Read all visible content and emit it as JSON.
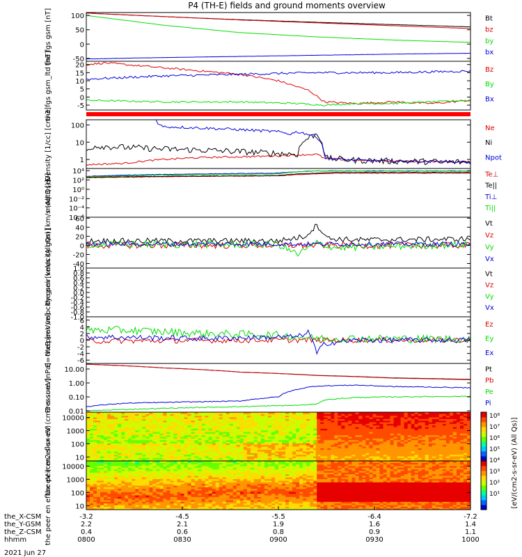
{
  "title": "P4 (TH-E) fields and ground moments overview",
  "date": "2021 Jun 27",
  "colors": {
    "black": "#000000",
    "red": "#dd0000",
    "green": "#00dd00",
    "blue": "#0000dd"
  },
  "chart_data": [
    {
      "type": "line",
      "ylabel": "the fgs gsm [nT]",
      "ylim": [
        -60,
        110
      ],
      "log": false,
      "yticks": [
        {
          "v": 100,
          "t": "100"
        },
        {
          "v": 50,
          "t": "50"
        },
        {
          "v": 0,
          "t": "0"
        },
        {
          "v": -50,
          "t": "-50"
        }
      ],
      "series": [
        {
          "name": "Bt",
          "color": "#000000",
          "x": [
            0,
            0.2,
            0.4,
            0.6,
            0.8,
            1
          ],
          "y": [
            108,
            96,
            85,
            76,
            68,
            60
          ],
          "noise": 0.3
        },
        {
          "name": "bz",
          "color": "#dd0000",
          "x": [
            0,
            0.2,
            0.4,
            0.6,
            0.8,
            1
          ],
          "y": [
            108,
            96,
            84,
            74,
            64,
            54
          ],
          "noise": 0.3
        },
        {
          "name": "by",
          "color": "#00dd00",
          "x": [
            0,
            0.2,
            0.4,
            0.6,
            0.8,
            1
          ],
          "y": [
            100,
            66,
            40,
            25,
            14,
            6
          ],
          "noise": 0.3
        },
        {
          "name": "bx",
          "color": "#0000dd",
          "x": [
            0,
            0.2,
            0.4,
            0.6,
            0.8,
            1
          ],
          "y": [
            -52,
            -47,
            -43,
            -39,
            -35,
            -32
          ],
          "noise": 0.3
        }
      ]
    },
    {
      "type": "line",
      "ylabel": "the fgs gsm_ltd [nT]",
      "ylim": [
        -8,
        22
      ],
      "log": false,
      "yticks": [
        {
          "v": 20,
          "t": "20"
        },
        {
          "v": 15,
          "t": "15"
        },
        {
          "v": 10,
          "t": "10"
        },
        {
          "v": 5,
          "t": "5"
        },
        {
          "v": 0,
          "t": "0"
        },
        {
          "v": -5,
          "t": "-5"
        }
      ],
      "series": [
        {
          "name": "Bz",
          "color": "#dd0000",
          "x": [
            0,
            0.05,
            0.2,
            0.4,
            0.5,
            0.58,
            0.62,
            0.7,
            0.8,
            0.9,
            1
          ],
          "y": [
            20,
            21,
            18,
            14,
            10,
            4,
            -3,
            -4,
            -3,
            -4,
            -2
          ],
          "noise": 0.6
        },
        {
          "name": "By",
          "color": "#00dd00",
          "x": [
            0,
            0.2,
            0.4,
            0.55,
            0.62,
            0.7,
            0.8,
            0.9,
            1
          ],
          "y": [
            -2,
            -3,
            -3,
            -4,
            -5,
            -4,
            -4,
            -3,
            -2
          ],
          "noise": 0.5
        },
        {
          "name": "Bx",
          "color": "#0000dd",
          "x": [
            0,
            0.2,
            0.4,
            0.6,
            0.8,
            1
          ],
          "y": [
            11,
            13,
            14,
            15,
            15,
            16
          ],
          "noise": 0.7
        }
      ]
    },
    {
      "type": "line",
      "ylabel": "Density [1/cc] [cm-3]",
      "ylim": [
        0.3,
        200
      ],
      "log": true,
      "yticks": [
        {
          "v": 100,
          "t": "100"
        },
        {
          "v": 10,
          "t": "10"
        },
        {
          "v": 1,
          "t": "1"
        }
      ],
      "series": [
        {
          "name": "Ne",
          "color": "#dd0000",
          "x": [
            0,
            0.1,
            0.2,
            0.3,
            0.45,
            0.55,
            0.6,
            0.62,
            0.7,
            0.8,
            1
          ],
          "y": [
            0.5,
            0.6,
            1.0,
            1.3,
            1.5,
            1.8,
            2.0,
            1.1,
            0.9,
            0.8,
            0.7
          ],
          "noise": 0.05
        },
        {
          "name": "Ni",
          "color": "#000000",
          "x": [
            0,
            0.02,
            0.1,
            0.2,
            0.3,
            0.45,
            0.55,
            0.6,
            0.62,
            0.7,
            0.8,
            1
          ],
          "y": [
            3,
            6,
            5,
            4,
            3.5,
            2.5,
            2,
            30,
            1.2,
            0.9,
            0.8,
            0.7
          ],
          "noise": 0.18
        },
        {
          "name": "Npot",
          "color": "#0000dd",
          "x": [
            0.18,
            0.19,
            0.2,
            0.5,
            0.53,
            0.55,
            0.6,
            0.62,
            0.7,
            0.8,
            1
          ],
          "y": [
            200,
            100,
            80,
            40,
            30,
            40,
            20,
            1.2,
            0.9,
            0.8,
            0.7
          ],
          "noise": 0.08
        }
      ]
    },
    {
      "type": "line",
      "ylabel": "moqt3 [eV]",
      "ylim": [
        1e-06,
        30000
      ],
      "log": true,
      "yticks": [
        {
          "v": 10000,
          "t": "10⁴"
        },
        {
          "v": 100,
          "t": "10²"
        },
        {
          "v": 1,
          "t": "10⁰"
        },
        {
          "v": 0.01,
          "t": "10⁻²"
        },
        {
          "v": 0.0001,
          "t": "10⁻⁴"
        },
        {
          "v": 1e-06,
          "t": "10⁻⁶"
        }
      ],
      "series": [
        {
          "name": "Te⊥",
          "color": "#dd0000",
          "x": [
            0,
            0.5,
            0.6,
            0.65,
            1
          ],
          "y": [
            300,
            800,
            2000,
            3000,
            3000
          ],
          "noise": 0.05
        },
        {
          "name": "Te||",
          "color": "#000000",
          "x": [
            0,
            0.5,
            0.6,
            0.65,
            1
          ],
          "y": [
            400,
            900,
            3000,
            4000,
            4000
          ],
          "noise": 0.05
        },
        {
          "name": "Ti⊥",
          "color": "#0000dd",
          "x": [
            0,
            0.5,
            0.6,
            0.65,
            1
          ],
          "y": [
            600,
            3000,
            9000,
            9000,
            9000
          ],
          "noise": 0.05
        },
        {
          "name": "Ti||",
          "color": "#00dd00",
          "x": [
            0,
            0.5,
            0.6,
            0.65,
            1
          ],
          "y": [
            500,
            2000,
            9000,
            8000,
            8000
          ],
          "noise": 0.05
        }
      ]
    },
    {
      "type": "line",
      "ylabel": "the peir velocity gsm [km/s (All Qs)]",
      "ylim": [
        -50,
        62
      ],
      "log": false,
      "yticks": [
        {
          "v": 60,
          "t": "60"
        },
        {
          "v": 40,
          "t": "40"
        },
        {
          "v": 20,
          "t": "20"
        },
        {
          "v": 0,
          "t": "0"
        },
        {
          "v": -20,
          "t": "-20"
        },
        {
          "v": -40,
          "t": "-40"
        }
      ],
      "series": [
        {
          "name": "Vt",
          "color": "#000000",
          "x": [
            0,
            0.5,
            0.57,
            0.6,
            0.63,
            0.7,
            1
          ],
          "y": [
            10,
            10,
            20,
            45,
            15,
            12,
            14
          ],
          "noise": 6
        },
        {
          "name": "Vz",
          "color": "#dd0000",
          "x": [
            0,
            0.5,
            1
          ],
          "y": [
            0,
            0,
            0
          ],
          "noise": 7
        },
        {
          "name": "Vy",
          "color": "#00dd00",
          "x": [
            0,
            0.5,
            0.55,
            0.6,
            0.65,
            1
          ],
          "y": [
            2,
            2,
            -20,
            5,
            -5,
            2
          ],
          "noise": 8
        },
        {
          "name": "Vx",
          "color": "#0000dd",
          "x": [
            0,
            0.5,
            1
          ],
          "y": [
            3,
            3,
            3
          ],
          "noise": 5
        }
      ]
    },
    {
      "type": "line",
      "ylabel": "the peer velocity gsm [km/s (All Qs)]",
      "ylim": [
        -1,
        1
      ],
      "log": false,
      "yticks": [
        {
          "v": 1,
          "t": "1.0"
        },
        {
          "v": 0.8,
          "t": "0.8"
        },
        {
          "v": 0.6,
          "t": "0.6"
        },
        {
          "v": 0.4,
          "t": "0.4"
        },
        {
          "v": 0.2,
          "t": "0.2"
        },
        {
          "v": 0,
          "t": "0.0"
        },
        {
          "v": -0.2,
          "t": "-0.2"
        },
        {
          "v": -0.4,
          "t": "-0.4"
        },
        {
          "v": -0.6,
          "t": "-0.6"
        },
        {
          "v": -0.8,
          "t": "-0.8"
        },
        {
          "v": -1,
          "t": "-1.0"
        }
      ],
      "series": [
        {
          "name": "Vt",
          "color": "#000000",
          "x": [],
          "y": [],
          "noise": 0
        },
        {
          "name": "Vz",
          "color": "#dd0000",
          "x": [],
          "y": [],
          "noise": 0
        },
        {
          "name": "Vy",
          "color": "#00dd00",
          "x": [],
          "y": [],
          "noise": 0
        },
        {
          "name": "Vx",
          "color": "#0000dd",
          "x": [],
          "y": [],
          "noise": 0
        }
      ]
    },
    {
      "type": "line",
      "ylabel": "E=-VxB [mV/m]",
      "ylim": [
        -7,
        7
      ],
      "log": false,
      "yticks": [
        {
          "v": 6,
          "t": "6"
        },
        {
          "v": 4,
          "t": "4"
        },
        {
          "v": 2,
          "t": "2"
        },
        {
          "v": 0,
          "t": "0"
        },
        {
          "v": -2,
          "t": "-2"
        },
        {
          "v": -4,
          "t": "-4"
        },
        {
          "v": -6,
          "t": "-6"
        }
      ],
      "series": [
        {
          "name": "Ez",
          "color": "#dd0000",
          "x": [
            0,
            0.5,
            1
          ],
          "y": [
            -0.3,
            0,
            0
          ],
          "noise": 0.8
        },
        {
          "name": "Ey",
          "color": "#00dd00",
          "x": [
            0,
            0.1,
            0.3,
            0.5,
            0.6,
            0.7,
            1
          ],
          "y": [
            3,
            3,
            2,
            1.5,
            0.5,
            0.5,
            0.3
          ],
          "noise": 1.2
        },
        {
          "name": "Ex",
          "color": "#0000dd",
          "x": [
            0,
            0.3,
            0.55,
            0.58,
            0.6,
            0.62,
            0.7,
            1
          ],
          "y": [
            1,
            0.5,
            1,
            2.5,
            -4,
            -1,
            0,
            0
          ],
          "noise": 0.8
        }
      ]
    },
    {
      "type": "line",
      "ylabel": "Pressure [nPa]",
      "ylim": [
        0.008,
        25
      ],
      "log": true,
      "yticks": [
        {
          "v": 10,
          "t": "10.00"
        },
        {
          "v": 1,
          "t": "1.00"
        },
        {
          "v": 0.1,
          "t": "0.10"
        },
        {
          "v": 0.01,
          "t": "0.01"
        }
      ],
      "series": [
        {
          "name": "Pt",
          "color": "#000000",
          "x": [
            0,
            0.2,
            0.4,
            0.6,
            0.8,
            1
          ],
          "y": [
            22,
            12,
            6,
            3.5,
            2.3,
            1.8
          ],
          "noise": 0
        },
        {
          "name": "Pb",
          "color": "#dd0000",
          "x": [
            0,
            0.2,
            0.4,
            0.6,
            0.8,
            1
          ],
          "y": [
            22,
            12,
            6,
            3.4,
            2.2,
            1.7
          ],
          "noise": 0
        },
        {
          "name": "Pe",
          "color": "#00dd00",
          "x": [
            0,
            0.2,
            0.4,
            0.55,
            0.6,
            0.62,
            0.7,
            0.8,
            1
          ],
          "y": [
            0.01,
            0.015,
            0.02,
            0.025,
            0.03,
            0.06,
            0.09,
            0.1,
            0.11
          ],
          "noise": 0.03
        },
        {
          "name": "Pi",
          "color": "#0000dd",
          "x": [
            0,
            0.1,
            0.2,
            0.4,
            0.5,
            0.6,
            0.7,
            0.8,
            1
          ],
          "y": [
            0.02,
            0.035,
            0.04,
            0.05,
            0.1,
            0.6,
            0.7,
            0.55,
            0.45
          ],
          "noise": 0.03
        }
      ]
    },
    {
      "type": "heatmap",
      "ylabel": "the peir en eflux eV (cm2-s-sr-eV)",
      "ylim": [
        5,
        25000
      ],
      "log": true,
      "yticks": [
        {
          "v": 10000,
          "t": "10000"
        },
        {
          "v": 1000,
          "t": "1000"
        },
        {
          "v": 100,
          "t": "100"
        },
        {
          "v": 10,
          "t": "10"
        }
      ],
      "transition": 0.6
    },
    {
      "type": "heatmap",
      "ylabel": "the peer en eflux eV (cm2-s-sr-eV)",
      "ylim": [
        5,
        25000
      ],
      "log": true,
      "yticks": [
        {
          "v": 10000,
          "t": "10000"
        },
        {
          "v": 1000,
          "t": "1000"
        },
        {
          "v": 100,
          "t": "100"
        },
        {
          "v": 10,
          "t": "10"
        }
      ],
      "transition": 0.6
    }
  ],
  "colorbar": {
    "label": "[eV/(cm2-s-sr-eV) (All Qs)]",
    "ticks": [
      "10⁸",
      "10⁷",
      "10⁶",
      "10⁵",
      "10⁴",
      "10³",
      "10²",
      "10¹"
    ]
  },
  "xaxis": {
    "rows": [
      {
        "label": "the_X-CSM",
        "values": [
          "-3.2",
          "-4.5",
          "-5.5",
          "-6.4",
          "-7.2"
        ]
      },
      {
        "label": "the_Y-GSM",
        "values": [
          "2.2",
          "2.1",
          "1.9",
          "1.6",
          "1.4"
        ]
      },
      {
        "label": "the_Z-CSM",
        "values": [
          "0.4",
          "0.6",
          "0.8",
          "0.9",
          "1.1"
        ]
      },
      {
        "label": "hhmm",
        "values": [
          "0800",
          "0830",
          "0900",
          "0930",
          "1000"
        ]
      }
    ]
  }
}
